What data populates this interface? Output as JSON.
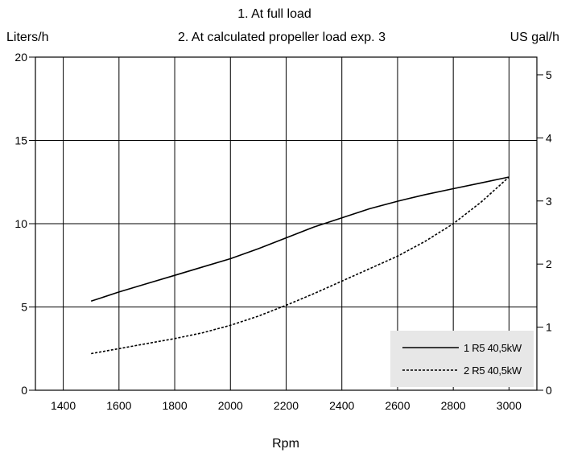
{
  "chart_data": {
    "type": "line",
    "title_lines": [
      "1. At full load",
      "2. At calculated propeller load exp. 3"
    ],
    "xlabel": "Rpm",
    "ylabel_left": "Liters/h",
    "ylabel_right": "US gal/h",
    "xlim": [
      1300,
      3100
    ],
    "ylim": [
      0,
      20
    ],
    "y2lim": [
      0,
      5.28
    ],
    "x_ticks": [
      1400,
      1600,
      1800,
      2000,
      2200,
      2400,
      2600,
      2800,
      3000
    ],
    "y_ticks": [
      0,
      5,
      10,
      15,
      20
    ],
    "y2_ticks": [
      0,
      1,
      2,
      3,
      4,
      5
    ],
    "grid": true,
    "legend_position": "bottom-right",
    "series": [
      {
        "name": "1 R5 40,5kW",
        "style": "solid",
        "x": [
          1500,
          1600,
          1700,
          1800,
          1900,
          2000,
          2100,
          2200,
          2300,
          2400,
          2500,
          2600,
          2700,
          2800,
          2900,
          3000
        ],
        "values": [
          5.35,
          5.9,
          6.4,
          6.9,
          7.4,
          7.9,
          8.5,
          9.15,
          9.8,
          10.35,
          10.9,
          11.35,
          11.75,
          12.1,
          12.45,
          12.8
        ]
      },
      {
        "name": "2 R5 40,5kW",
        "style": "dotted",
        "x": [
          1500,
          1600,
          1700,
          1800,
          1900,
          2000,
          2100,
          2200,
          2300,
          2400,
          2500,
          2600,
          2700,
          2800,
          2900,
          3000
        ],
        "values": [
          2.2,
          2.5,
          2.8,
          3.1,
          3.45,
          3.9,
          4.45,
          5.1,
          5.8,
          6.55,
          7.3,
          8.05,
          8.95,
          10.0,
          11.3,
          12.8
        ]
      }
    ]
  }
}
